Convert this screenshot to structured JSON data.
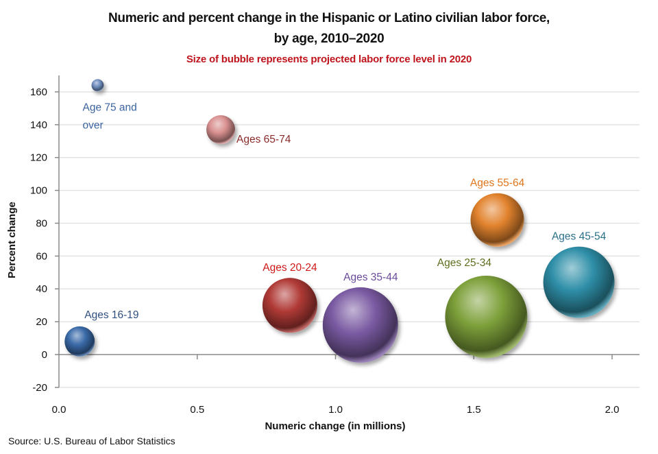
{
  "chart_data": {
    "type": "bubble",
    "title": "Numeric and percent change in the Hispanic or Latino civilian labor force,",
    "title_line2": "by age, 2010–2020",
    "subtitle": "Size of bubble represents projected labor force level in 2020",
    "xlabel": "Numeric change  (in millions)",
    "ylabel": "Percent change",
    "xlim": [
      0.0,
      2.1
    ],
    "ylim": [
      -20,
      170
    ],
    "xticks": [
      0.0,
      0.5,
      1.0,
      1.5,
      2.0
    ],
    "xtick_labels": [
      "0.0",
      "0.5",
      "1.0",
      "1.5",
      "2.0"
    ],
    "yticks": [
      -20,
      0,
      20,
      40,
      60,
      80,
      100,
      120,
      140,
      160
    ],
    "ytick_labels": [
      "-20",
      "0",
      "20",
      "40",
      "60",
      "80",
      "100",
      "120",
      "140",
      "160"
    ],
    "grid": "horizontal",
    "size_note": "relative bubble size (projected 2020 labor force level)",
    "series": [
      {
        "name": "Ages 16-19",
        "label_lines": [
          "Ages 16-19"
        ],
        "x": 0.075,
        "y": 8,
        "size": 22,
        "color": "#3a6aa8",
        "label_color": "#2f4f7f",
        "label_pos": "above-right"
      },
      {
        "name": "Ages 20-24",
        "label_lines": [
          "Ages 20-24"
        ],
        "x": 0.835,
        "y": 30,
        "size": 40,
        "color": "#b03a36",
        "label_color": "#d01818",
        "label_pos": "above"
      },
      {
        "name": "Ages 25-34",
        "label_lines": [
          "Ages  25-34"
        ],
        "x": 1.545,
        "y": 23,
        "size": 60,
        "color": "#7da03a",
        "label_color": "#5c6e1e",
        "label_pos": "above-left"
      },
      {
        "name": "Ages 35-44",
        "label_lines": [
          "Ages 35-44"
        ],
        "x": 1.09,
        "y": 18,
        "size": 55,
        "color": "#7a5aa2",
        "label_color": "#6a4a9a",
        "label_pos": "above-right"
      },
      {
        "name": "Ages 45-54",
        "label_lines": [
          "Ages 45-54"
        ],
        "x": 1.88,
        "y": 44,
        "size": 52,
        "color": "#2f8fa8",
        "label_color": "#2a6f8a",
        "label_pos": "above"
      },
      {
        "name": "Ages 55-64",
        "label_lines": [
          "Ages 55-64"
        ],
        "x": 1.585,
        "y": 82,
        "size": 39,
        "color": "#e2832e",
        "label_color": "#e0741a",
        "label_pos": "above"
      },
      {
        "name": "Ages 65-74",
        "label_lines": [
          "Ages 65-74"
        ],
        "x": 0.585,
        "y": 137,
        "size": 21,
        "color": "#d99090",
        "label_color": "#8a2a2a",
        "label_pos": "right"
      },
      {
        "name": "Age 75 and over",
        "label_lines": [
          "Age 75 and",
          "over"
        ],
        "x": 0.14,
        "y": 164,
        "size": 9,
        "color": "#7090c0",
        "label_color": "#3b63a0",
        "label_pos": "below"
      }
    ]
  },
  "source": "Source: U.S. Bureau of Labor Statistics"
}
